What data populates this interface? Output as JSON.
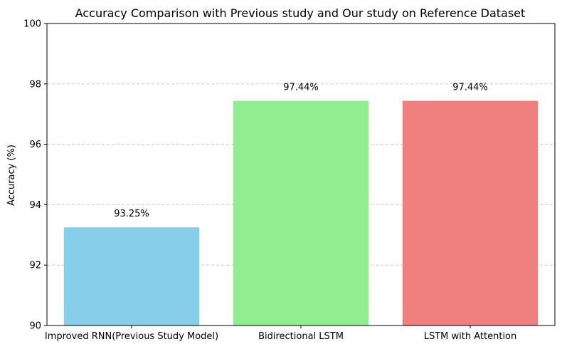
{
  "chart_data": {
    "type": "bar",
    "title": "Accuracy Comparison with Previous study and Our study on Reference Dataset",
    "xlabel": "",
    "ylabel": "Accuracy (%)",
    "categories": [
      "Improved RNN(Previous Study Model)",
      "Bidirectional LSTM",
      "LSTM with Attention"
    ],
    "values": [
      93.25,
      97.44,
      97.44
    ],
    "data_labels": [
      "93.25%",
      "97.44%",
      "97.44%"
    ],
    "colors": [
      "#87ceeb",
      "#90ee90",
      "#f08080"
    ],
    "ylim": [
      90,
      100
    ],
    "yticks": [
      90,
      92,
      94,
      96,
      98,
      100
    ],
    "ytick_labels": [
      "90",
      "92",
      "94",
      "96",
      "98",
      "100"
    ],
    "grid": "y-dashed",
    "legend": "none"
  }
}
